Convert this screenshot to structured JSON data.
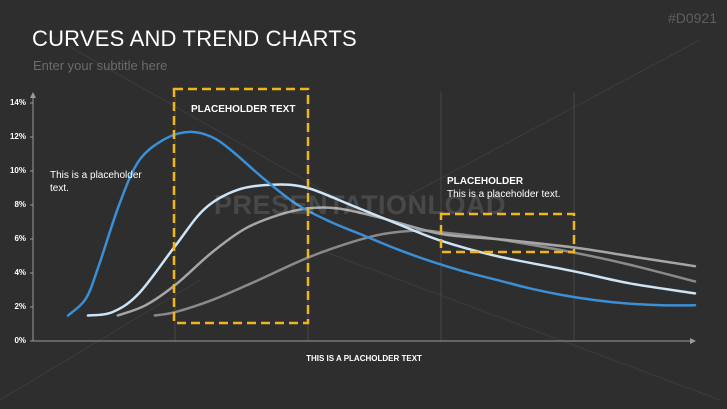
{
  "chart_data": {
    "type": "line",
    "title": "CURVES AND TREND CHARTS",
    "subtitle": "Enter your subtitle here",
    "xlabel": "THIS IS A PLACHOLDER TEXT",
    "annotations": [
      "#D0921",
      "PLACEHOLDER TEXT",
      "This is a placeholder text.",
      "PLACEHOLDER",
      "This is a placeholder text.",
      "PRESENTATIONLOAD"
    ],
    "xlim": [
      0,
      100
    ],
    "ylim": [
      0,
      14
    ],
    "yticks": [
      {
        "value": 0,
        "label": "0%"
      },
      {
        "value": 2,
        "label": "2%"
      },
      {
        "value": 4,
        "label": "4%"
      },
      {
        "value": 6,
        "label": "6%"
      },
      {
        "value": 8,
        "label": "8%"
      },
      {
        "value": 10,
        "label": "10%"
      },
      {
        "value": 12,
        "label": "12%"
      },
      {
        "value": 14,
        "label": "14%"
      }
    ],
    "series": [
      {
        "color": "#3a8fd6",
        "x": [
          5.3,
          8,
          10,
          13,
          16,
          20,
          23.7,
          27,
          30,
          35,
          40,
          45,
          50,
          55,
          60,
          65,
          70,
          75,
          80,
          85,
          90,
          95,
          100
        ],
        "values": [
          1.5,
          2.5,
          4.5,
          8,
          10.6,
          11.9,
          12.3,
          12,
          11.2,
          9.5,
          8,
          7,
          6.2,
          5.4,
          4.7,
          4.1,
          3.6,
          3.1,
          2.7,
          2.4,
          2.2,
          2.1,
          2.1
        ]
      },
      {
        "color": "#cde4f6",
        "x": [
          8.3,
          12,
          16,
          21.5,
          26,
          31,
          36.6,
          41.5,
          48,
          55,
          61.6,
          70,
          81.7,
          90,
          100
        ],
        "values": [
          1.5,
          1.7,
          2.8,
          5.6,
          7.8,
          8.9,
          9.2,
          9.0,
          8.0,
          6.9,
          5.9,
          5.0,
          4.1,
          3.4,
          2.8
        ]
      },
      {
        "color": "#a6a6a6",
        "x": [
          12.8,
          17,
          21.5,
          27,
          32,
          37,
          41.5,
          46,
          52,
          61.6,
          70,
          81.7,
          90,
          100
        ],
        "values": [
          1.5,
          2.1,
          3.3,
          5.2,
          6.6,
          7.4,
          7.8,
          7.8,
          7.3,
          6.3,
          6.0,
          5.5,
          5.0,
          4.4
        ]
      },
      {
        "color": "#8a8a8a",
        "x": [
          18.4,
          21.5,
          27,
          33,
          41.5,
          48,
          53,
          58.5,
          61.6,
          70,
          81.7,
          90,
          100
        ],
        "values": [
          1.5,
          1.7,
          2.4,
          3.4,
          4.9,
          5.8,
          6.3,
          6.5,
          6.4,
          6.0,
          5.2,
          4.5,
          3.5
        ]
      }
    ]
  }
}
